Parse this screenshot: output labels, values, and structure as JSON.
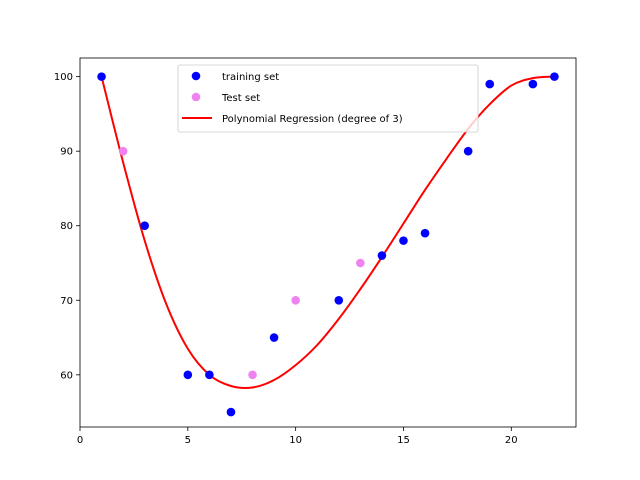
{
  "chart_data": {
    "type": "scatter",
    "title": "",
    "xlabel": "",
    "ylabel": "",
    "xlim": [
      0,
      23
    ],
    "ylim": [
      53,
      102.5
    ],
    "x_ticks": [
      0,
      5,
      10,
      15,
      20
    ],
    "y_ticks": [
      60,
      70,
      80,
      90,
      100
    ],
    "grid": false,
    "legend": {
      "placement": "top-center"
    },
    "series": [
      {
        "name": "training set",
        "type": "scatter",
        "color": "#0000ff",
        "points": [
          [
            1,
            100
          ],
          [
            3,
            80
          ],
          [
            5,
            60
          ],
          [
            6,
            60
          ],
          [
            7,
            55
          ],
          [
            9,
            65
          ],
          [
            12,
            70
          ],
          [
            14,
            76
          ],
          [
            15,
            78
          ],
          [
            16,
            79
          ],
          [
            18,
            90
          ],
          [
            19,
            99
          ],
          [
            21,
            99
          ],
          [
            22,
            100
          ]
        ]
      },
      {
        "name": "Test set",
        "type": "scatter",
        "color": "#ee82ee",
        "points": [
          [
            2,
            90
          ],
          [
            8,
            60
          ],
          [
            10,
            70
          ],
          [
            13,
            75
          ]
        ]
      },
      {
        "name": "Polynomial Regression (degree of 3)",
        "type": "line",
        "color": "#ff0000",
        "x_range": [
          1,
          22
        ],
        "points": [
          [
            1,
            100
          ],
          [
            2,
            88.5
          ],
          [
            3,
            78
          ],
          [
            4,
            69.5
          ],
          [
            5,
            63.5
          ],
          [
            6,
            60
          ],
          [
            7,
            58.5
          ],
          [
            8,
            58.3
          ],
          [
            9,
            59.3
          ],
          [
            10,
            61.3
          ],
          [
            11,
            64
          ],
          [
            12,
            67.5
          ],
          [
            13,
            71.5
          ],
          [
            14,
            75.8
          ],
          [
            15,
            80.3
          ],
          [
            16,
            84.8
          ],
          [
            17,
            89
          ],
          [
            18,
            93
          ],
          [
            19,
            96.3
          ],
          [
            20,
            98.8
          ],
          [
            21,
            99.8
          ],
          [
            22,
            100
          ]
        ]
      }
    ]
  }
}
